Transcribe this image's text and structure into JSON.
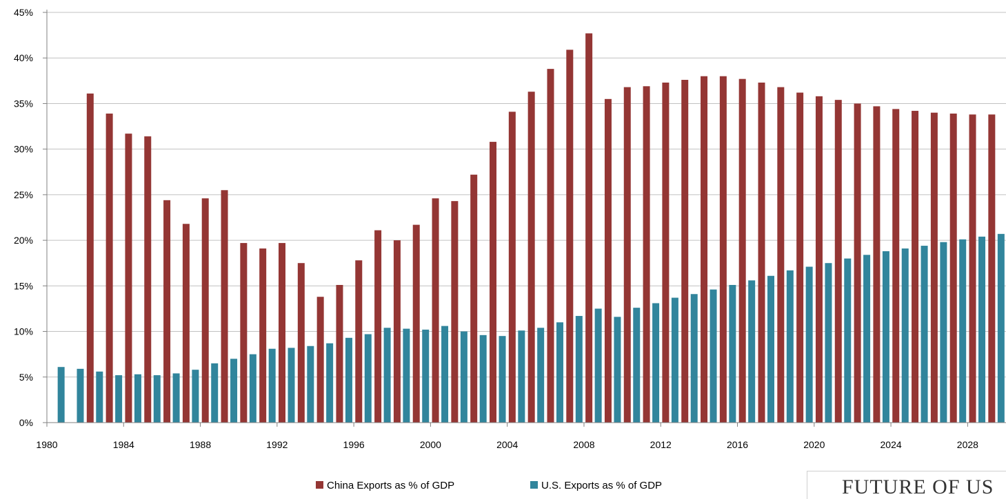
{
  "chart_data": {
    "type": "bar",
    "x": [
      1980,
      1981,
      1982,
      1983,
      1984,
      1985,
      1986,
      1987,
      1988,
      1989,
      1990,
      1991,
      1992,
      1993,
      1994,
      1995,
      1996,
      1997,
      1998,
      1999,
      2000,
      2001,
      2002,
      2003,
      2004,
      2005,
      2006,
      2007,
      2008,
      2009,
      2010,
      2011,
      2012,
      2013,
      2014,
      2015,
      2016,
      2017,
      2018,
      2019,
      2020,
      2021,
      2022,
      2023,
      2024,
      2025,
      2026,
      2027,
      2028,
      2029
    ],
    "x_tick_labels": [
      "1980",
      "1984",
      "1988",
      "1992",
      "1996",
      "2000",
      "2004",
      "2008",
      "2012",
      "2016",
      "2020",
      "2024",
      "2028"
    ],
    "x_tick_values": [
      1980,
      1984,
      1988,
      1992,
      1996,
      2000,
      2004,
      2008,
      2012,
      2016,
      2020,
      2024,
      2028
    ],
    "y_tick_labels": [
      "0%",
      "5%",
      "10%",
      "15%",
      "20%",
      "25%",
      "30%",
      "35%",
      "40%",
      "45%"
    ],
    "ylim": [
      0,
      45
    ],
    "grid": true,
    "legend_position": "bottom",
    "series": [
      {
        "name": "China Exports as % of GDP",
        "color": "#943634",
        "values": [
          null,
          null,
          36.1,
          33.9,
          31.7,
          31.4,
          24.4,
          21.8,
          24.6,
          25.5,
          19.7,
          19.1,
          19.7,
          17.5,
          13.8,
          15.1,
          17.8,
          21.1,
          20.0,
          21.7,
          24.6,
          24.3,
          27.2,
          30.8,
          34.1,
          36.3,
          38.8,
          40.9,
          42.7,
          35.5,
          36.8,
          36.9,
          37.3,
          37.6,
          38.0,
          38.0,
          37.7,
          37.3,
          36.8,
          36.2,
          35.8,
          35.4,
          35.0,
          34.7,
          34.4,
          34.2,
          34.0,
          33.9,
          33.8,
          33.8
        ]
      },
      {
        "name": "U.S. Exports as % of GDP",
        "color": "#31859c",
        "values": [
          6.1,
          5.9,
          5.6,
          5.2,
          5.3,
          5.2,
          5.4,
          5.8,
          6.5,
          7.0,
          7.5,
          8.1,
          8.2,
          8.4,
          8.7,
          9.3,
          9.7,
          10.4,
          10.3,
          10.2,
          10.6,
          10.0,
          9.6,
          9.5,
          10.1,
          10.4,
          11.0,
          11.7,
          12.5,
          11.6,
          12.6,
          13.1,
          13.7,
          14.1,
          14.6,
          15.1,
          15.6,
          16.1,
          16.7,
          17.1,
          17.5,
          18.0,
          18.4,
          18.8,
          19.1,
          19.4,
          19.8,
          20.1,
          20.4,
          20.7
        ]
      }
    ]
  },
  "brand": {
    "text": "FUTURE OF US"
  }
}
